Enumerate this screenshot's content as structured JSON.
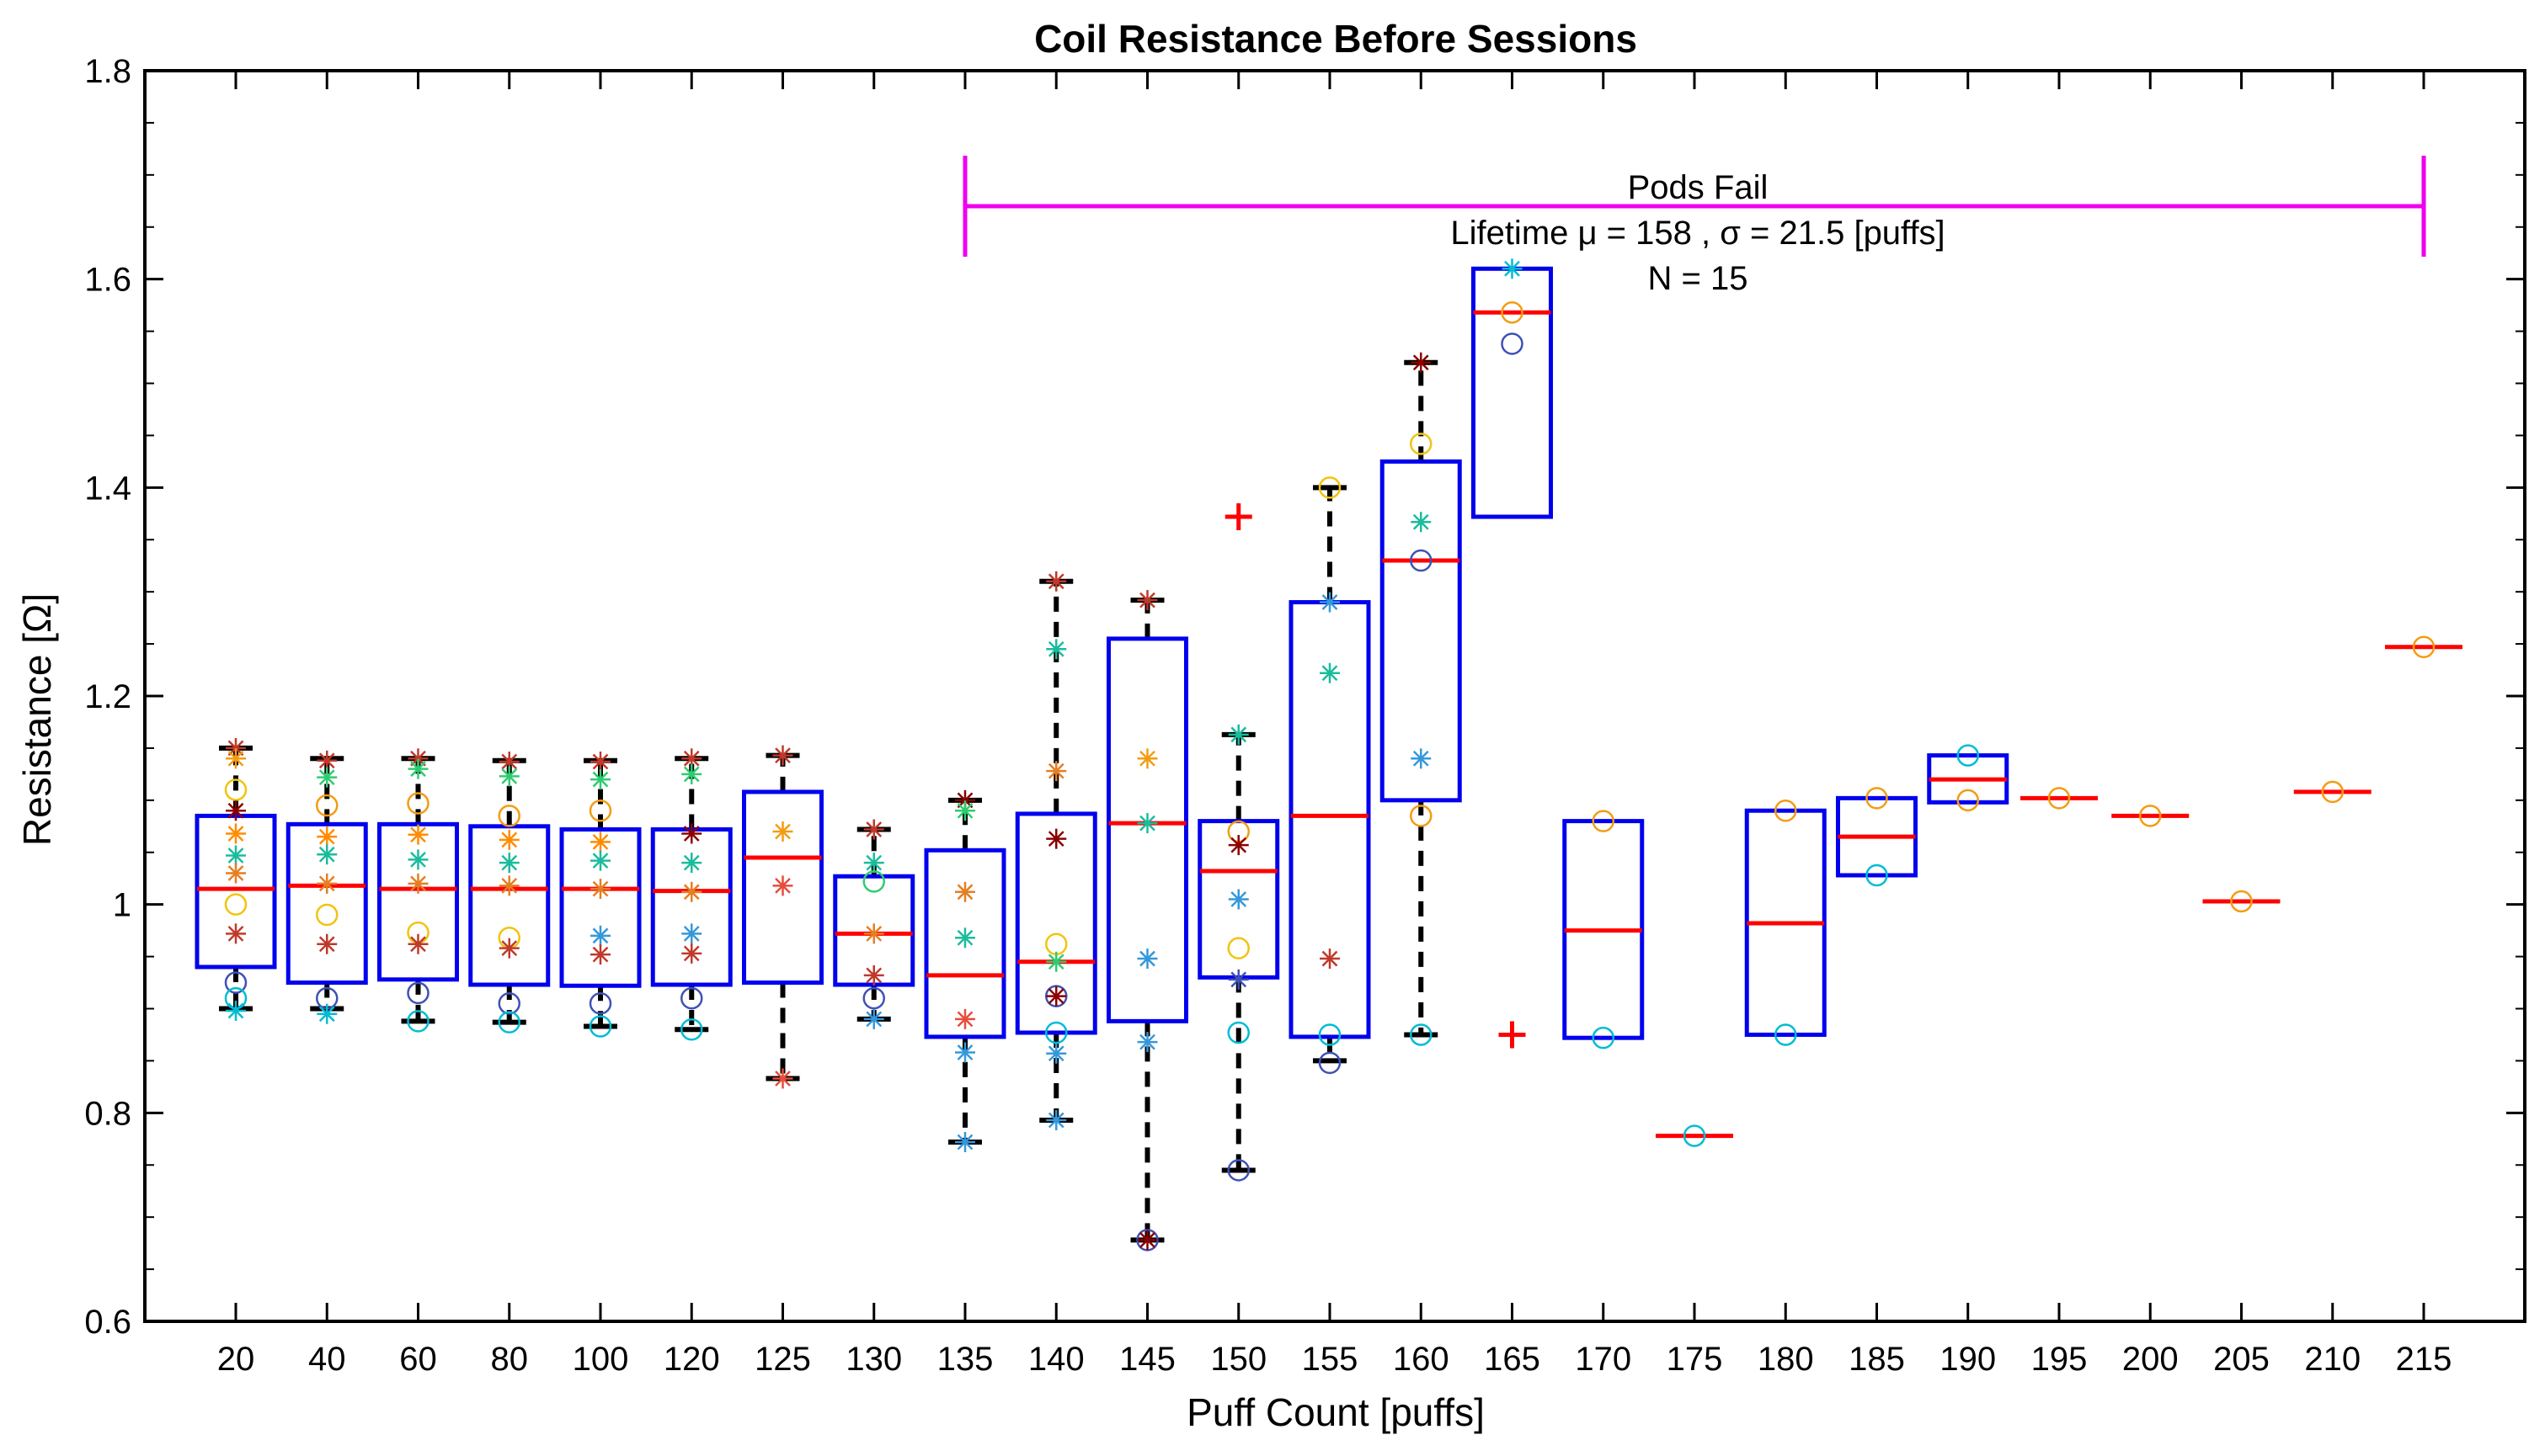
{
  "chart_data": {
    "type": "boxplot",
    "title": "Coil Resistance Before Sessions",
    "xlabel": "Puff Count [puffs]",
    "ylabel": "Resistance [Ω]",
    "ylim": [
      0.6,
      1.8
    ],
    "yticks": [
      0.6,
      0.8,
      1,
      1.2,
      1.4,
      1.6,
      1.8
    ],
    "ytick_labels": [
      "0.6",
      "0.8",
      "1",
      "1.2",
      "1.4",
      "1.6",
      "1.8"
    ],
    "categories": [
      "20",
      "40",
      "60",
      "80",
      "100",
      "120",
      "125",
      "130",
      "135",
      "140",
      "145",
      "150",
      "155",
      "160",
      "165",
      "170",
      "175",
      "180",
      "185",
      "190",
      "195",
      "200",
      "205",
      "210",
      "215"
    ],
    "boxes": [
      {
        "q1": 0.94,
        "median": 1.015,
        "q3": 1.085,
        "lw": 0.9,
        "uw": 1.15,
        "outliers": []
      },
      {
        "q1": 0.925,
        "median": 1.018,
        "q3": 1.077,
        "lw": 0.9,
        "uw": 1.14,
        "outliers": []
      },
      {
        "q1": 0.928,
        "median": 1.015,
        "q3": 1.077,
        "lw": 0.888,
        "uw": 1.14,
        "outliers": []
      },
      {
        "q1": 0.923,
        "median": 1.015,
        "q3": 1.075,
        "lw": 0.887,
        "uw": 1.138,
        "outliers": []
      },
      {
        "q1": 0.922,
        "median": 1.015,
        "q3": 1.072,
        "lw": 0.883,
        "uw": 1.138,
        "outliers": []
      },
      {
        "q1": 0.923,
        "median": 1.013,
        "q3": 1.072,
        "lw": 0.88,
        "uw": 1.14,
        "outliers": []
      },
      {
        "q1": 0.925,
        "median": 1.045,
        "q3": 1.108,
        "lw": 0.833,
        "uw": 1.143,
        "outliers": []
      },
      {
        "q1": 0.923,
        "median": 0.972,
        "q3": 1.027,
        "lw": 0.89,
        "uw": 1.072,
        "outliers": []
      },
      {
        "q1": 0.873,
        "median": 0.932,
        "q3": 1.052,
        "lw": 0.772,
        "uw": 1.1,
        "outliers": []
      },
      {
        "q1": 0.877,
        "median": 0.945,
        "q3": 1.087,
        "lw": 0.793,
        "uw": 1.31,
        "outliers": []
      },
      {
        "q1": 0.888,
        "median": 1.078,
        "q3": 1.255,
        "lw": 0.678,
        "uw": 1.292,
        "outliers": []
      },
      {
        "q1": 0.93,
        "median": 1.032,
        "q3": 1.08,
        "lw": 0.745,
        "uw": 1.163,
        "outliers": [
          1.372
        ]
      },
      {
        "q1": 0.873,
        "median": 1.085,
        "q3": 1.29,
        "lw": 0.85,
        "uw": 1.4,
        "outliers": []
      },
      {
        "q1": 1.1,
        "median": 1.33,
        "q3": 1.425,
        "lw": 0.875,
        "uw": 1.52,
        "outliers": []
      },
      {
        "q1": 1.372,
        "median": 1.568,
        "q3": 1.61,
        "lw": 1.372,
        "uw": 1.61,
        "outliers": [
          0.875
        ]
      },
      {
        "q1": 0.872,
        "median": 0.975,
        "q3": 1.08,
        "lw": 0.872,
        "uw": 1.08,
        "outliers": []
      },
      {
        "q1": 0.778,
        "median": 0.778,
        "q3": 0.778,
        "lw": 0.778,
        "uw": 0.778,
        "outliers": []
      },
      {
        "q1": 0.875,
        "median": 0.982,
        "q3": 1.09,
        "lw": 0.875,
        "uw": 1.09,
        "outliers": []
      },
      {
        "q1": 1.028,
        "median": 1.065,
        "q3": 1.102,
        "lw": 1.028,
        "uw": 1.102,
        "outliers": []
      },
      {
        "q1": 1.098,
        "median": 1.12,
        "q3": 1.143,
        "lw": 1.098,
        "uw": 1.143,
        "outliers": []
      },
      {
        "q1": 1.102,
        "median": 1.102,
        "q3": 1.102,
        "lw": 1.102,
        "uw": 1.102,
        "outliers": []
      },
      {
        "q1": 1.085,
        "median": 1.085,
        "q3": 1.085,
        "lw": 1.085,
        "uw": 1.085,
        "outliers": []
      },
      {
        "q1": 1.003,
        "median": 1.003,
        "q3": 1.003,
        "lw": 1.003,
        "uw": 1.003,
        "outliers": []
      },
      {
        "q1": 1.108,
        "median": 1.108,
        "q3": 1.108,
        "lw": 1.108,
        "uw": 1.108,
        "outliers": []
      },
      {
        "q1": 1.247,
        "median": 1.247,
        "q3": 1.247,
        "lw": 1.247,
        "uw": 1.247,
        "outliers": []
      }
    ],
    "points": [
      {
        "c": "20",
        "y": 1.15,
        "m": "star",
        "col": "#c0392b"
      },
      {
        "c": "20",
        "y": 1.14,
        "m": "star",
        "col": "#f39c12"
      },
      {
        "c": "20",
        "y": 1.11,
        "m": "circle",
        "col": "#f1c40f"
      },
      {
        "c": "20",
        "y": 1.09,
        "m": "star",
        "col": "#8b0000"
      },
      {
        "c": "20",
        "y": 1.068,
        "m": "star",
        "col": "#ff8c00"
      },
      {
        "c": "20",
        "y": 1.047,
        "m": "star",
        "col": "#1abc9c"
      },
      {
        "c": "20",
        "y": 1.03,
        "m": "star",
        "col": "#e67e22"
      },
      {
        "c": "20",
        "y": 1.0,
        "m": "circle",
        "col": "#f1c40f"
      },
      {
        "c": "20",
        "y": 0.972,
        "m": "star",
        "col": "#c0392b"
      },
      {
        "c": "20",
        "y": 0.925,
        "m": "circle",
        "col": "#3f51b5"
      },
      {
        "c": "20",
        "y": 0.91,
        "m": "circle",
        "col": "#00bcd4"
      },
      {
        "c": "20",
        "y": 0.898,
        "m": "star",
        "col": "#00bcd4"
      },
      {
        "c": "40",
        "y": 1.138,
        "m": "star",
        "col": "#c0392b"
      },
      {
        "c": "40",
        "y": 1.122,
        "m": "star",
        "col": "#2ecc71"
      },
      {
        "c": "40",
        "y": 1.095,
        "m": "circle",
        "col": "#f39c12"
      },
      {
        "c": "40",
        "y": 1.065,
        "m": "star",
        "col": "#ff8c00"
      },
      {
        "c": "40",
        "y": 1.048,
        "m": "star",
        "col": "#1abc9c"
      },
      {
        "c": "40",
        "y": 1.02,
        "m": "star",
        "col": "#e67e22"
      },
      {
        "c": "40",
        "y": 0.99,
        "m": "circle",
        "col": "#f1c40f"
      },
      {
        "c": "40",
        "y": 0.962,
        "m": "star",
        "col": "#c0392b"
      },
      {
        "c": "40",
        "y": 0.91,
        "m": "circle",
        "col": "#3f51b5"
      },
      {
        "c": "40",
        "y": 0.895,
        "m": "star",
        "col": "#00bcd4"
      },
      {
        "c": "60",
        "y": 1.14,
        "m": "star",
        "col": "#c0392b"
      },
      {
        "c": "60",
        "y": 1.13,
        "m": "star",
        "col": "#2ecc71"
      },
      {
        "c": "60",
        "y": 1.097,
        "m": "circle",
        "col": "#f39c12"
      },
      {
        "c": "60",
        "y": 1.067,
        "m": "star",
        "col": "#ff8c00"
      },
      {
        "c": "60",
        "y": 1.043,
        "m": "star",
        "col": "#1abc9c"
      },
      {
        "c": "60",
        "y": 1.02,
        "m": "star",
        "col": "#e67e22"
      },
      {
        "c": "60",
        "y": 0.973,
        "m": "circle",
        "col": "#f1c40f"
      },
      {
        "c": "60",
        "y": 0.962,
        "m": "star",
        "col": "#c0392b"
      },
      {
        "c": "60",
        "y": 0.915,
        "m": "circle",
        "col": "#3f51b5"
      },
      {
        "c": "60",
        "y": 0.888,
        "m": "circle",
        "col": "#00bcd4"
      },
      {
        "c": "80",
        "y": 1.137,
        "m": "star",
        "col": "#c0392b"
      },
      {
        "c": "80",
        "y": 1.123,
        "m": "star",
        "col": "#2ecc71"
      },
      {
        "c": "80",
        "y": 1.085,
        "m": "circle",
        "col": "#f39c12"
      },
      {
        "c": "80",
        "y": 1.062,
        "m": "star",
        "col": "#ff8c00"
      },
      {
        "c": "80",
        "y": 1.04,
        "m": "star",
        "col": "#1abc9c"
      },
      {
        "c": "80",
        "y": 1.018,
        "m": "star",
        "col": "#e67e22"
      },
      {
        "c": "80",
        "y": 0.968,
        "m": "circle",
        "col": "#f1c40f"
      },
      {
        "c": "80",
        "y": 0.958,
        "m": "star",
        "col": "#c0392b"
      },
      {
        "c": "80",
        "y": 0.905,
        "m": "circle",
        "col": "#3f51b5"
      },
      {
        "c": "80",
        "y": 0.887,
        "m": "circle",
        "col": "#00bcd4"
      },
      {
        "c": "100",
        "y": 1.137,
        "m": "star",
        "col": "#c0392b"
      },
      {
        "c": "100",
        "y": 1.12,
        "m": "star",
        "col": "#2ecc71"
      },
      {
        "c": "100",
        "y": 1.09,
        "m": "circle",
        "col": "#f39c12"
      },
      {
        "c": "100",
        "y": 1.06,
        "m": "star",
        "col": "#ff8c00"
      },
      {
        "c": "100",
        "y": 1.042,
        "m": "star",
        "col": "#1abc9c"
      },
      {
        "c": "100",
        "y": 1.015,
        "m": "star",
        "col": "#e67e22"
      },
      {
        "c": "100",
        "y": 0.97,
        "m": "star",
        "col": "#3498db"
      },
      {
        "c": "100",
        "y": 0.952,
        "m": "star",
        "col": "#c0392b"
      },
      {
        "c": "100",
        "y": 0.905,
        "m": "circle",
        "col": "#3f51b5"
      },
      {
        "c": "100",
        "y": 0.883,
        "m": "circle",
        "col": "#00bcd4"
      },
      {
        "c": "120",
        "y": 1.14,
        "m": "star",
        "col": "#c0392b"
      },
      {
        "c": "120",
        "y": 1.125,
        "m": "star",
        "col": "#2ecc71"
      },
      {
        "c": "120",
        "y": 1.068,
        "m": "star",
        "col": "#8b0000"
      },
      {
        "c": "120",
        "y": 1.04,
        "m": "star",
        "col": "#1abc9c"
      },
      {
        "c": "120",
        "y": 1.012,
        "m": "star",
        "col": "#e67e22"
      },
      {
        "c": "120",
        "y": 0.972,
        "m": "star",
        "col": "#3498db"
      },
      {
        "c": "120",
        "y": 0.953,
        "m": "star",
        "col": "#c0392b"
      },
      {
        "c": "120",
        "y": 0.91,
        "m": "circle",
        "col": "#3f51b5"
      },
      {
        "c": "120",
        "y": 0.88,
        "m": "circle",
        "col": "#00bcd4"
      },
      {
        "c": "125",
        "y": 1.143,
        "m": "star",
        "col": "#c0392b"
      },
      {
        "c": "125",
        "y": 1.07,
        "m": "star",
        "col": "#f39c12"
      },
      {
        "c": "125",
        "y": 1.018,
        "m": "star",
        "col": "#e74c3c"
      },
      {
        "c": "125",
        "y": 0.833,
        "m": "star",
        "col": "#e74c3c"
      },
      {
        "c": "130",
        "y": 1.072,
        "m": "star",
        "col": "#c0392b"
      },
      {
        "c": "130",
        "y": 1.04,
        "m": "star",
        "col": "#1abc9c"
      },
      {
        "c": "130",
        "y": 1.022,
        "m": "circle",
        "col": "#2ecc71"
      },
      {
        "c": "130",
        "y": 0.972,
        "m": "star",
        "col": "#e67e22"
      },
      {
        "c": "130",
        "y": 0.932,
        "m": "star",
        "col": "#c0392b"
      },
      {
        "c": "130",
        "y": 0.91,
        "m": "circle",
        "col": "#3f51b5"
      },
      {
        "c": "130",
        "y": 0.89,
        "m": "star",
        "col": "#3498db"
      },
      {
        "c": "135",
        "y": 1.1,
        "m": "star",
        "col": "#8b0000"
      },
      {
        "c": "135",
        "y": 1.09,
        "m": "star",
        "col": "#2ecc71"
      },
      {
        "c": "135",
        "y": 1.012,
        "m": "star",
        "col": "#e67e22"
      },
      {
        "c": "135",
        "y": 0.968,
        "m": "star",
        "col": "#1abc9c"
      },
      {
        "c": "135",
        "y": 0.89,
        "m": "star",
        "col": "#e74c3c"
      },
      {
        "c": "135",
        "y": 0.858,
        "m": "star",
        "col": "#3498db"
      },
      {
        "c": "135",
        "y": 0.772,
        "m": "star",
        "col": "#3498db"
      },
      {
        "c": "140",
        "y": 1.31,
        "m": "star",
        "col": "#c0392b"
      },
      {
        "c": "140",
        "y": 1.245,
        "m": "star",
        "col": "#1abc9c"
      },
      {
        "c": "140",
        "y": 1.128,
        "m": "star",
        "col": "#e67e22"
      },
      {
        "c": "140",
        "y": 1.063,
        "m": "star",
        "col": "#8b0000"
      },
      {
        "c": "140",
        "y": 0.962,
        "m": "circle",
        "col": "#f1c40f"
      },
      {
        "c": "140",
        "y": 0.945,
        "m": "star",
        "col": "#2ecc71"
      },
      {
        "c": "140",
        "y": 0.912,
        "m": "circle",
        "col": "#3f51b5"
      },
      {
        "c": "140",
        "y": 0.912,
        "m": "star",
        "col": "#8b0000"
      },
      {
        "c": "140",
        "y": 0.877,
        "m": "circle",
        "col": "#00bcd4"
      },
      {
        "c": "140",
        "y": 0.857,
        "m": "star",
        "col": "#3498db"
      },
      {
        "c": "140",
        "y": 0.793,
        "m": "star",
        "col": "#3498db"
      },
      {
        "c": "145",
        "y": 1.292,
        "m": "star",
        "col": "#c0392b"
      },
      {
        "c": "145",
        "y": 1.14,
        "m": "star",
        "col": "#f39c12"
      },
      {
        "c": "145",
        "y": 1.078,
        "m": "star",
        "col": "#1abc9c"
      },
      {
        "c": "145",
        "y": 0.948,
        "m": "star",
        "col": "#3498db"
      },
      {
        "c": "145",
        "y": 0.868,
        "m": "star",
        "col": "#3498db"
      },
      {
        "c": "145",
        "y": 0.678,
        "m": "circle",
        "col": "#3f51b5"
      },
      {
        "c": "145",
        "y": 0.678,
        "m": "star",
        "col": "#8b0000"
      },
      {
        "c": "150",
        "y": 1.163,
        "m": "star",
        "col": "#1abc9c"
      },
      {
        "c": "150",
        "y": 1.07,
        "m": "circle",
        "col": "#f39c12"
      },
      {
        "c": "150",
        "y": 1.057,
        "m": "star",
        "col": "#8b0000"
      },
      {
        "c": "150",
        "y": 1.005,
        "m": "star",
        "col": "#3498db"
      },
      {
        "c": "150",
        "y": 0.958,
        "m": "circle",
        "col": "#f1c40f"
      },
      {
        "c": "150",
        "y": 0.928,
        "m": "star",
        "col": "#3f51b5"
      },
      {
        "c": "150",
        "y": 0.877,
        "m": "circle",
        "col": "#00bcd4"
      },
      {
        "c": "150",
        "y": 0.745,
        "m": "circle",
        "col": "#3f51b5"
      },
      {
        "c": "155",
        "y": 1.4,
        "m": "circle",
        "col": "#f1c40f"
      },
      {
        "c": "155",
        "y": 1.29,
        "m": "star",
        "col": "#3498db"
      },
      {
        "c": "155",
        "y": 1.222,
        "m": "star",
        "col": "#1abc9c"
      },
      {
        "c": "155",
        "y": 0.948,
        "m": "star",
        "col": "#c0392b"
      },
      {
        "c": "155",
        "y": 0.875,
        "m": "circle",
        "col": "#00bcd4"
      },
      {
        "c": "155",
        "y": 0.848,
        "m": "circle",
        "col": "#3f51b5"
      },
      {
        "c": "160",
        "y": 1.52,
        "m": "star",
        "col": "#8b0000"
      },
      {
        "c": "160",
        "y": 1.442,
        "m": "circle",
        "col": "#f1c40f"
      },
      {
        "c": "160",
        "y": 1.367,
        "m": "star",
        "col": "#1abc9c"
      },
      {
        "c": "160",
        "y": 1.33,
        "m": "circle",
        "col": "#3f51b5"
      },
      {
        "c": "160",
        "y": 1.14,
        "m": "star",
        "col": "#3498db"
      },
      {
        "c": "160",
        "y": 1.085,
        "m": "circle",
        "col": "#f39c12"
      },
      {
        "c": "160",
        "y": 0.875,
        "m": "circle",
        "col": "#00bcd4"
      },
      {
        "c": "165",
        "y": 1.61,
        "m": "star",
        "col": "#00bcd4"
      },
      {
        "c": "165",
        "y": 1.568,
        "m": "circle",
        "col": "#f39c12"
      },
      {
        "c": "165",
        "y": 1.538,
        "m": "circle",
        "col": "#3f51b5"
      },
      {
        "c": "170",
        "y": 1.08,
        "m": "circle",
        "col": "#f39c12"
      },
      {
        "c": "170",
        "y": 0.872,
        "m": "circle",
        "col": "#00bcd4"
      },
      {
        "c": "175",
        "y": 0.778,
        "m": "circle",
        "col": "#00bcd4"
      },
      {
        "c": "180",
        "y": 1.09,
        "m": "circle",
        "col": "#f39c12"
      },
      {
        "c": "180",
        "y": 0.875,
        "m": "circle",
        "col": "#00bcd4"
      },
      {
        "c": "185",
        "y": 1.102,
        "m": "circle",
        "col": "#f39c12"
      },
      {
        "c": "185",
        "y": 1.028,
        "m": "circle",
        "col": "#00bcd4"
      },
      {
        "c": "190",
        "y": 1.143,
        "m": "circle",
        "col": "#00bcd4"
      },
      {
        "c": "190",
        "y": 1.1,
        "m": "circle",
        "col": "#f39c12"
      },
      {
        "c": "195",
        "y": 1.102,
        "m": "circle",
        "col": "#f39c12"
      },
      {
        "c": "200",
        "y": 1.085,
        "m": "circle",
        "col": "#f39c12"
      },
      {
        "c": "205",
        "y": 1.003,
        "m": "circle",
        "col": "#f39c12"
      },
      {
        "c": "210",
        "y": 1.108,
        "m": "circle",
        "col": "#f39c12"
      },
      {
        "c": "215",
        "y": 1.247,
        "m": "circle",
        "col": "#f39c12"
      }
    ],
    "annotation": {
      "bracket_from": "135",
      "bracket_to": "215",
      "bracket_y": 1.67,
      "line1": "Pods Fail",
      "line2": "Lifetime μ = 158 , σ = 21.5 [puffs]",
      "line3": "N = 15"
    },
    "colors": {
      "box": "#0000ee",
      "median": "#ff0000",
      "whisker": "#000000",
      "bracket": "#ee00ee",
      "outlier": "#ff0000"
    }
  }
}
